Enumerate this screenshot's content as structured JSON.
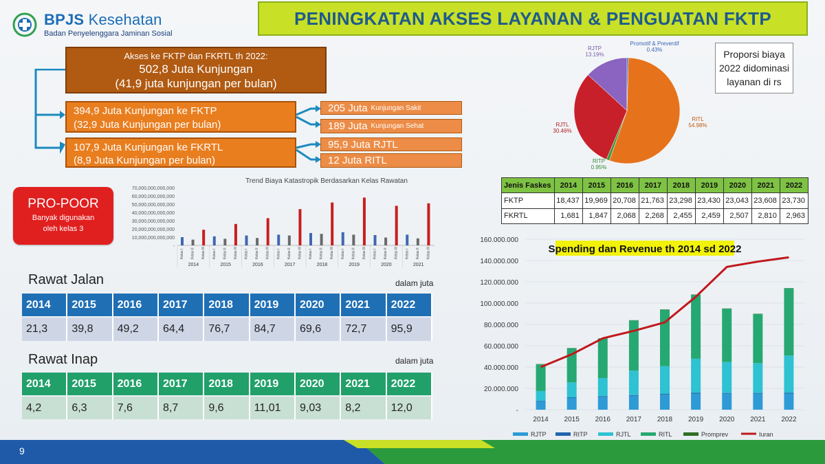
{
  "logo": {
    "brand_a": "BPJS",
    "brand_b": "Kesehatan",
    "subtitle": "Badan Penyelenggara Jaminan Sosial",
    "color": "#1b6db5"
  },
  "title": "PENINGKATAN AKSES LAYANAN & PENGUATAN FKTP",
  "flow": {
    "main": {
      "line1": "Akses ke FKTP dan FKRTL  th 2022:",
      "line2": "502,8 Juta Kunjungan",
      "line3": "(41,9 juta kunjungan per bulan)"
    },
    "fktp": {
      "line1": "394,9 Juta Kunjungan ke FKTP",
      "line2": "(32,9 Juta Kunjungan per bulan)"
    },
    "fkrtl": {
      "line1": "107,9 Juta Kunjungan ke FKRTL",
      "line2": "(8,9 Juta Kunjungan per bulan)"
    },
    "sakit": {
      "big": "205 Juta",
      "small": "Kunjungan Sakit"
    },
    "sehat": {
      "big": "189 Juta",
      "small": "Kunjungan Sehat"
    },
    "rjtl": {
      "big": "95,9 Juta RJTL"
    },
    "ritl": {
      "big": "12 Juta RITL"
    }
  },
  "propoor": {
    "heading": "PRO-POOR",
    "line1": "Banyak digunakan",
    "line2": "oleh kelas 3"
  },
  "rawat_jalan": {
    "title": "Rawat Jalan",
    "note": "dalam juta",
    "years": [
      "2014",
      "2015",
      "2016",
      "2017",
      "2018",
      "2019",
      "2020",
      "2021",
      "2022"
    ],
    "values": [
      "21,3",
      "39,8",
      "49,2",
      "64,4",
      "76,7",
      "84,7",
      "69,6",
      "72,7",
      "95,9"
    ]
  },
  "rawat_inap": {
    "title": "Rawat Inap",
    "note": "dalam juta",
    "years": [
      "2014",
      "2015",
      "2016",
      "2017",
      "2018",
      "2019",
      "2020",
      "2021",
      "2022"
    ],
    "values": [
      "4,2",
      "6,3",
      "7,6",
      "8,7",
      "9,6",
      "11,01",
      "9,03",
      "8,2",
      "12,0"
    ]
  },
  "proporsi_note": {
    "line1": "Proporsi biaya",
    "line2": "2022 didominasi",
    "line3": "layanan di rs"
  },
  "faskes_table": {
    "header": "Jenis Faskes",
    "years": [
      "2014",
      "2015",
      "2016",
      "2017",
      "2018",
      "2019",
      "2020",
      "2021",
      "2022"
    ],
    "rows": [
      {
        "label": "FKTP",
        "values": [
          "18,437",
          "19,969",
          "20,708",
          "21,763",
          "23,298",
          "23,430",
          "23,043",
          "23,608",
          "23,730"
        ]
      },
      {
        "label": "FKRTL",
        "values": [
          "1,681",
          "1,847",
          "2,068",
          "2,268",
          "2,455",
          "2,459",
          "2,507",
          "2,810",
          "2,963"
        ]
      }
    ]
  },
  "page_number": "9",
  "chart_data": [
    {
      "type": "bar",
      "title": "Trend Biaya Katastropik Berdasarkan Kelas Rawatan",
      "categories": [
        "2014",
        "2015",
        "2016",
        "2017",
        "2018",
        "2019",
        "2020",
        "2021"
      ],
      "class_labels": [
        "Kelas I",
        "Kelas II",
        "Kelas III"
      ],
      "series": [
        {
          "name": "Kelas I",
          "color": "#3f67b0",
          "values": [
            10000000000000,
            11000000000000,
            12000000000000,
            13000000000000,
            15000000000000,
            16000000000000,
            12500000000000,
            13000000000000
          ]
        },
        {
          "name": "Kelas II",
          "color": "#6a6a6a",
          "values": [
            7000000000000,
            8000000000000,
            9000000000000,
            12000000000000,
            14000000000000,
            13000000000000,
            9500000000000,
            8500000000000
          ]
        },
        {
          "name": "Kelas III",
          "color": "#c81e1e",
          "values": [
            19000000000000,
            26000000000000,
            33000000000000,
            44000000000000,
            52000000000000,
            58000000000000,
            48000000000000,
            51000000000000
          ]
        }
      ],
      "yticks": [
        "-",
        "10,000,000,000,000",
        "20,000,000,000,000",
        "30,000,000,000,000",
        "40,000,000,000,000",
        "50,000,000,000,000",
        "60,000,000,000,000",
        "70,000,000,000,000"
      ],
      "ylim": [
        0,
        70000000000000
      ]
    },
    {
      "type": "pie",
      "slices": [
        {
          "label": "RITL",
          "value": 54.98,
          "text": "54.98%",
          "color": "#e6731b"
        },
        {
          "label": "RITP",
          "value": 0.95,
          "text": "0.95%",
          "color": "#3f9a3a"
        },
        {
          "label": "RJTL",
          "value": 30.46,
          "text": "30.46%",
          "color": "#c8202a"
        },
        {
          "label": "RJTP",
          "value": 13.19,
          "text": "13.19%",
          "color": "#8b63c0"
        },
        {
          "label": "Promotif & Preventif",
          "value": 0.43,
          "text": "0.43%",
          "color": "#3a63b5"
        }
      ]
    },
    {
      "type": "bar",
      "title": "Spending dan Revenue th 2014 sd 2022",
      "categories": [
        "2014",
        "2015",
        "2016",
        "2017",
        "2018",
        "2019",
        "2020",
        "2021",
        "2022"
      ],
      "stacked": true,
      "series": [
        {
          "name": "RJTP",
          "color": "#2e9bd6",
          "values": [
            8000000,
            11000000,
            12000000,
            13000000,
            14000000,
            15000000,
            15000000,
            15000000,
            15000000
          ]
        },
        {
          "name": "RITP",
          "color": "#1f64ad",
          "values": [
            500000,
            600000,
            700000,
            700000,
            800000,
            800000,
            700000,
            700000,
            800000
          ]
        },
        {
          "name": "RJTL",
          "color": "#2ec2d2",
          "values": [
            9000000,
            14000000,
            17000000,
            23000000,
            26000000,
            32000000,
            29000000,
            28000000,
            35000000
          ]
        },
        {
          "name": "RITL",
          "color": "#26a872",
          "values": [
            25000000,
            32000000,
            37000000,
            47000000,
            53000000,
            60000000,
            50000000,
            46000000,
            63000000
          ]
        },
        {
          "name": "Promprev",
          "color": "#2f6e25",
          "values": [
            300000,
            300000,
            300000,
            300000,
            300000,
            300000,
            300000,
            300000,
            300000
          ]
        }
      ],
      "line": {
        "name": "Iuran",
        "color": "#c0181c",
        "values": [
          40000000,
          52000000,
          67000000,
          74000000,
          82000000,
          106000000,
          134000000,
          139000000,
          143000000
        ]
      },
      "yticks": [
        "-",
        "20.000.000",
        "40.000.000",
        "60.000.000",
        "80.000.000",
        "100.000.000",
        "120.000.000",
        "140.000.000",
        "160.000.000"
      ],
      "ylim": [
        0,
        160000000
      ],
      "legend": "bottom"
    }
  ]
}
